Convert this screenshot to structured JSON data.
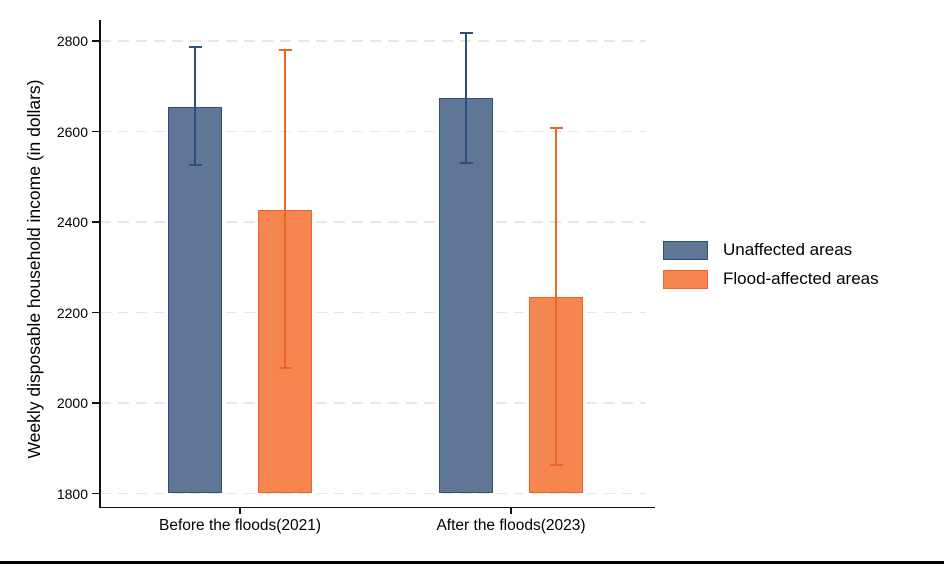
{
  "figure": {
    "background": "#ffffff",
    "bottom_rule_color": "#000000",
    "axis_color": "#111111",
    "gridline_color": "#E6E6E6"
  },
  "chart_data": {
    "type": "bar",
    "title": "",
    "xlabel": "",
    "ylabel": "Weekly disposable household income (in dollars)",
    "categories": [
      "Before the floods(2021)",
      "After the floods(2023)"
    ],
    "series": [
      {
        "name": "Unaffected areas",
        "fill": "#5F7697",
        "border": "#2E4E7C",
        "error_color": "#2E4E7C",
        "values": [
          2655,
          2673
        ],
        "ci_low": [
          2525,
          2530
        ],
        "ci_high": [
          2787,
          2818
        ]
      },
      {
        "name": "Flood-affected areas",
        "fill": "#F58650",
        "border": "#EF6428",
        "error_color": "#EF6428",
        "values": [
          2427,
          2235
        ],
        "ci_low": [
          2077,
          1862
        ],
        "ci_high": [
          2781,
          2607
        ]
      }
    ],
    "ylim": [
      1800,
      2800
    ],
    "yticks": [
      1800,
      2000,
      2200,
      2400,
      2600,
      2800
    ],
    "grid": "dashed-horizontal",
    "error_bars": "capped, drawn over bars",
    "legend_position": "right"
  }
}
